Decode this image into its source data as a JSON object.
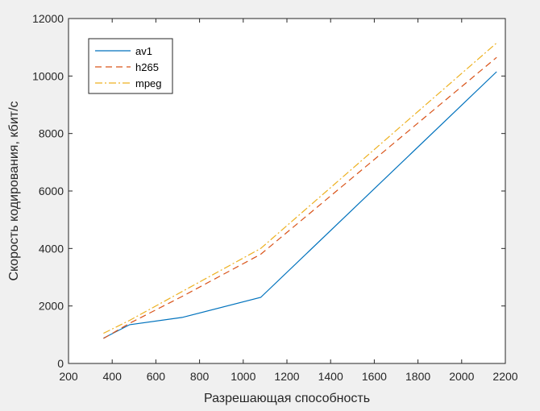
{
  "chart_data": {
    "type": "line",
    "xlabel": "Разрешающая способность",
    "ylabel": "Скорость кодирования, кбит/с",
    "xlim": [
      200,
      2200
    ],
    "ylim": [
      0,
      12000
    ],
    "xticks": [
      200,
      400,
      600,
      800,
      1000,
      1200,
      1400,
      1600,
      1800,
      2000,
      2200
    ],
    "yticks": [
      0,
      2000,
      4000,
      6000,
      8000,
      10000,
      12000
    ],
    "grid": false,
    "legend_position": "top-left",
    "series": [
      {
        "name": "av1",
        "color": "#0072bd",
        "style": "solid",
        "x": [
          360,
          480,
          720,
          1080,
          2160
        ],
        "y": [
          880,
          1350,
          1600,
          2300,
          10150
        ]
      },
      {
        "name": "h265",
        "color": "#d95319",
        "style": "dashed",
        "x": [
          360,
          480,
          720,
          1080,
          2160
        ],
        "y": [
          870,
          1400,
          2330,
          3800,
          10650
        ]
      },
      {
        "name": "mpeg",
        "color": "#edb120",
        "style": "dashdot",
        "x": [
          360,
          480,
          720,
          1080,
          2160
        ],
        "y": [
          1050,
          1500,
          2500,
          4000,
          11150
        ]
      }
    ]
  }
}
